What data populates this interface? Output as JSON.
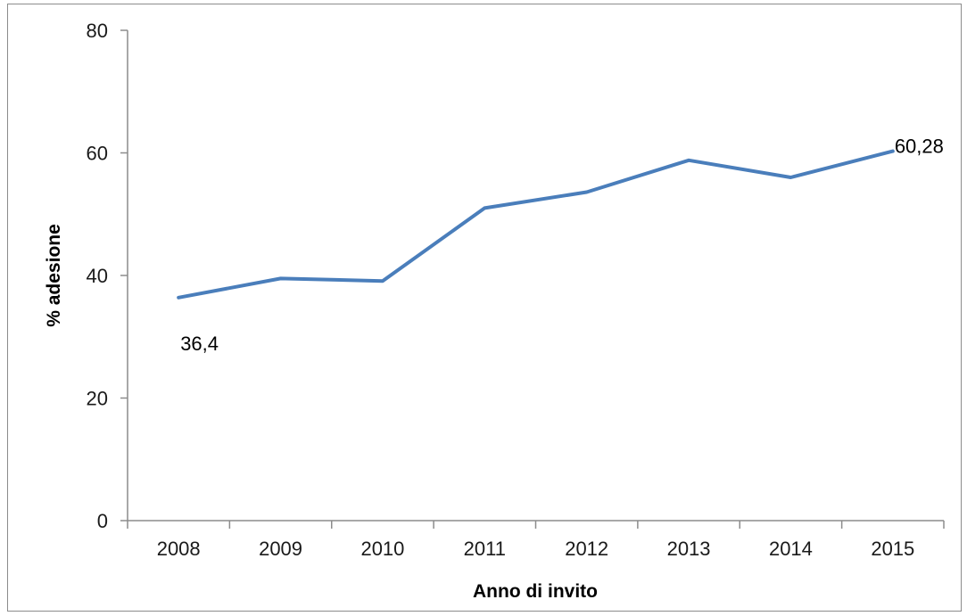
{
  "chart_data": {
    "type": "line",
    "title": "",
    "xlabel": "Anno di invito",
    "ylabel": "% adesione",
    "categories": [
      "2008",
      "2009",
      "2010",
      "2011",
      "2012",
      "2013",
      "2014",
      "2015"
    ],
    "series": [
      {
        "values": [
          36.4,
          39.5,
          39.1,
          51.0,
          53.6,
          58.8,
          56.0,
          60.28
        ],
        "color": "#4a7ebb"
      }
    ],
    "ylim": [
      0,
      80
    ],
    "yticks": [
      "0",
      "20",
      "40",
      "60",
      "80"
    ],
    "grid": false,
    "legend": "none",
    "data_labels": [
      {
        "index": 0,
        "text": "36,4"
      },
      {
        "index": 7,
        "text": "60,28"
      }
    ]
  }
}
